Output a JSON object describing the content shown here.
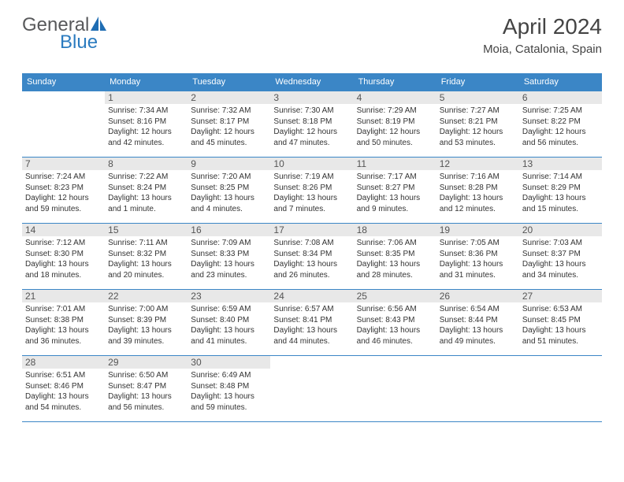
{
  "logo": {
    "general": "General",
    "blue": "Blue"
  },
  "title": {
    "month": "April 2024",
    "location": "Moia, Catalonia, Spain"
  },
  "colors": {
    "header_bg": "#3b86c6",
    "border": "#3b86c6",
    "daynum_bg": "#e8e8e8",
    "logo_gray": "#58595b",
    "logo_blue": "#2b7bbf"
  },
  "weekdays": [
    "Sunday",
    "Monday",
    "Tuesday",
    "Wednesday",
    "Thursday",
    "Friday",
    "Saturday"
  ],
  "weeks": [
    [
      null,
      {
        "n": "1",
        "sr": "Sunrise: 7:34 AM",
        "ss": "Sunset: 8:16 PM",
        "d1": "Daylight: 12 hours",
        "d2": "and 42 minutes."
      },
      {
        "n": "2",
        "sr": "Sunrise: 7:32 AM",
        "ss": "Sunset: 8:17 PM",
        "d1": "Daylight: 12 hours",
        "d2": "and 45 minutes."
      },
      {
        "n": "3",
        "sr": "Sunrise: 7:30 AM",
        "ss": "Sunset: 8:18 PM",
        "d1": "Daylight: 12 hours",
        "d2": "and 47 minutes."
      },
      {
        "n": "4",
        "sr": "Sunrise: 7:29 AM",
        "ss": "Sunset: 8:19 PM",
        "d1": "Daylight: 12 hours",
        "d2": "and 50 minutes."
      },
      {
        "n": "5",
        "sr": "Sunrise: 7:27 AM",
        "ss": "Sunset: 8:21 PM",
        "d1": "Daylight: 12 hours",
        "d2": "and 53 minutes."
      },
      {
        "n": "6",
        "sr": "Sunrise: 7:25 AM",
        "ss": "Sunset: 8:22 PM",
        "d1": "Daylight: 12 hours",
        "d2": "and 56 minutes."
      }
    ],
    [
      {
        "n": "7",
        "sr": "Sunrise: 7:24 AM",
        "ss": "Sunset: 8:23 PM",
        "d1": "Daylight: 12 hours",
        "d2": "and 59 minutes."
      },
      {
        "n": "8",
        "sr": "Sunrise: 7:22 AM",
        "ss": "Sunset: 8:24 PM",
        "d1": "Daylight: 13 hours",
        "d2": "and 1 minute."
      },
      {
        "n": "9",
        "sr": "Sunrise: 7:20 AM",
        "ss": "Sunset: 8:25 PM",
        "d1": "Daylight: 13 hours",
        "d2": "and 4 minutes."
      },
      {
        "n": "10",
        "sr": "Sunrise: 7:19 AM",
        "ss": "Sunset: 8:26 PM",
        "d1": "Daylight: 13 hours",
        "d2": "and 7 minutes."
      },
      {
        "n": "11",
        "sr": "Sunrise: 7:17 AM",
        "ss": "Sunset: 8:27 PM",
        "d1": "Daylight: 13 hours",
        "d2": "and 9 minutes."
      },
      {
        "n": "12",
        "sr": "Sunrise: 7:16 AM",
        "ss": "Sunset: 8:28 PM",
        "d1": "Daylight: 13 hours",
        "d2": "and 12 minutes."
      },
      {
        "n": "13",
        "sr": "Sunrise: 7:14 AM",
        "ss": "Sunset: 8:29 PM",
        "d1": "Daylight: 13 hours",
        "d2": "and 15 minutes."
      }
    ],
    [
      {
        "n": "14",
        "sr": "Sunrise: 7:12 AM",
        "ss": "Sunset: 8:30 PM",
        "d1": "Daylight: 13 hours",
        "d2": "and 18 minutes."
      },
      {
        "n": "15",
        "sr": "Sunrise: 7:11 AM",
        "ss": "Sunset: 8:32 PM",
        "d1": "Daylight: 13 hours",
        "d2": "and 20 minutes."
      },
      {
        "n": "16",
        "sr": "Sunrise: 7:09 AM",
        "ss": "Sunset: 8:33 PM",
        "d1": "Daylight: 13 hours",
        "d2": "and 23 minutes."
      },
      {
        "n": "17",
        "sr": "Sunrise: 7:08 AM",
        "ss": "Sunset: 8:34 PM",
        "d1": "Daylight: 13 hours",
        "d2": "and 26 minutes."
      },
      {
        "n": "18",
        "sr": "Sunrise: 7:06 AM",
        "ss": "Sunset: 8:35 PM",
        "d1": "Daylight: 13 hours",
        "d2": "and 28 minutes."
      },
      {
        "n": "19",
        "sr": "Sunrise: 7:05 AM",
        "ss": "Sunset: 8:36 PM",
        "d1": "Daylight: 13 hours",
        "d2": "and 31 minutes."
      },
      {
        "n": "20",
        "sr": "Sunrise: 7:03 AM",
        "ss": "Sunset: 8:37 PM",
        "d1": "Daylight: 13 hours",
        "d2": "and 34 minutes."
      }
    ],
    [
      {
        "n": "21",
        "sr": "Sunrise: 7:01 AM",
        "ss": "Sunset: 8:38 PM",
        "d1": "Daylight: 13 hours",
        "d2": "and 36 minutes."
      },
      {
        "n": "22",
        "sr": "Sunrise: 7:00 AM",
        "ss": "Sunset: 8:39 PM",
        "d1": "Daylight: 13 hours",
        "d2": "and 39 minutes."
      },
      {
        "n": "23",
        "sr": "Sunrise: 6:59 AM",
        "ss": "Sunset: 8:40 PM",
        "d1": "Daylight: 13 hours",
        "d2": "and 41 minutes."
      },
      {
        "n": "24",
        "sr": "Sunrise: 6:57 AM",
        "ss": "Sunset: 8:41 PM",
        "d1": "Daylight: 13 hours",
        "d2": "and 44 minutes."
      },
      {
        "n": "25",
        "sr": "Sunrise: 6:56 AM",
        "ss": "Sunset: 8:43 PM",
        "d1": "Daylight: 13 hours",
        "d2": "and 46 minutes."
      },
      {
        "n": "26",
        "sr": "Sunrise: 6:54 AM",
        "ss": "Sunset: 8:44 PM",
        "d1": "Daylight: 13 hours",
        "d2": "and 49 minutes."
      },
      {
        "n": "27",
        "sr": "Sunrise: 6:53 AM",
        "ss": "Sunset: 8:45 PM",
        "d1": "Daylight: 13 hours",
        "d2": "and 51 minutes."
      }
    ],
    [
      {
        "n": "28",
        "sr": "Sunrise: 6:51 AM",
        "ss": "Sunset: 8:46 PM",
        "d1": "Daylight: 13 hours",
        "d2": "and 54 minutes."
      },
      {
        "n": "29",
        "sr": "Sunrise: 6:50 AM",
        "ss": "Sunset: 8:47 PM",
        "d1": "Daylight: 13 hours",
        "d2": "and 56 minutes."
      },
      {
        "n": "30",
        "sr": "Sunrise: 6:49 AM",
        "ss": "Sunset: 8:48 PM",
        "d1": "Daylight: 13 hours",
        "d2": "and 59 minutes."
      },
      null,
      null,
      null,
      null
    ]
  ]
}
